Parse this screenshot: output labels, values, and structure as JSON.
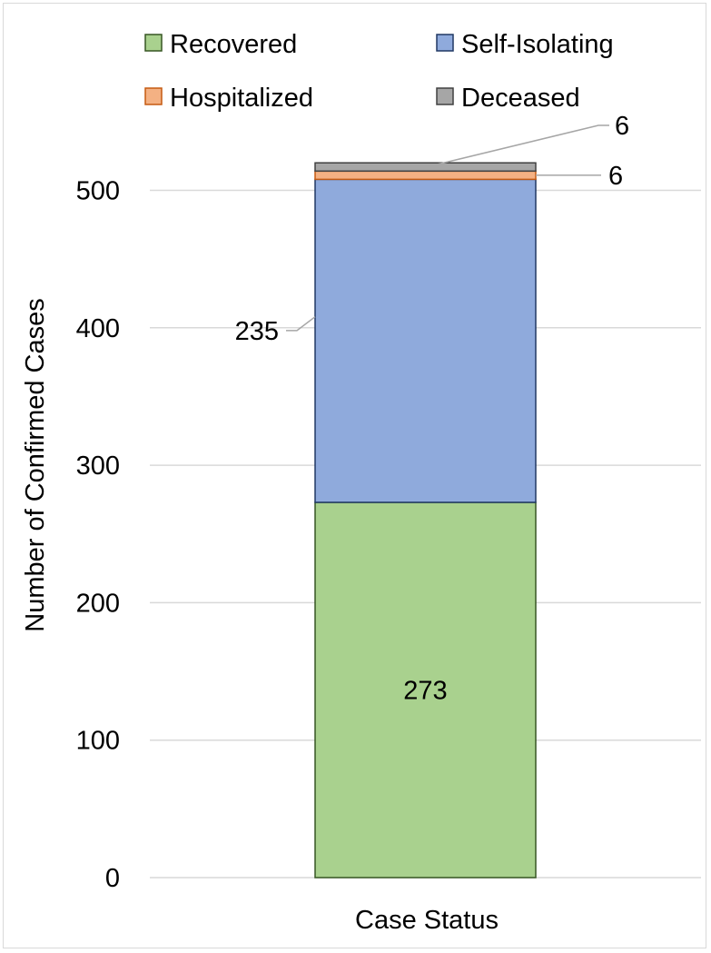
{
  "chart_data": {
    "type": "bar",
    "stacked": true,
    "categories": [
      ""
    ],
    "xlabel": "Case Status",
    "ylabel": "Number of Confirmed Cases",
    "ylim": [
      0,
      500
    ],
    "yticks": [
      0,
      100,
      200,
      300,
      400,
      500
    ],
    "grid": true,
    "legend_position": "top",
    "series": [
      {
        "name": "Recovered",
        "values": [
          273
        ],
        "color": "#a9d18e",
        "label": "273"
      },
      {
        "name": "Self-Isolating",
        "values": [
          235
        ],
        "color": "#8faadc",
        "label": "235"
      },
      {
        "name": "Hospitalized",
        "values": [
          6
        ],
        "color": "#f4b183",
        "label": "6"
      },
      {
        "name": "Deceased",
        "values": [
          6
        ],
        "color": "#a6a6a6",
        "label": "6"
      }
    ]
  }
}
